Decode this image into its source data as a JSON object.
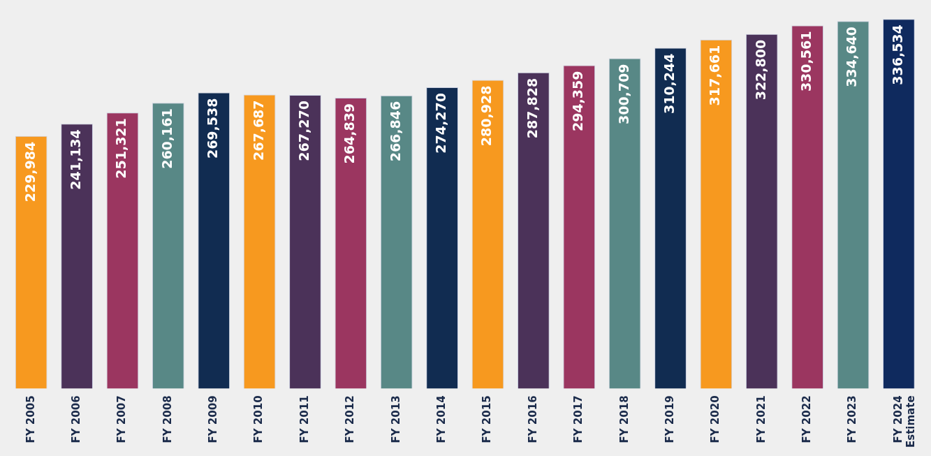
{
  "chart_data": {
    "type": "bar",
    "categories": [
      "FY 2005",
      "FY 2006",
      "FY 2007",
      "FY 2008",
      "FY 2009",
      "FY 2010",
      "FY 2011",
      "FY 2012",
      "FY 2013",
      "FY 2014",
      "FY 2015",
      "FY 2016",
      "FY 2017",
      "FY 2018",
      "FY 2019",
      "FY 2020",
      "FY 2021",
      "FY 2022",
      "FY 2023",
      "FY 2024\nEstimate"
    ],
    "values": [
      229984,
      241134,
      251321,
      260161,
      269538,
      267687,
      267270,
      264839,
      266846,
      274270,
      280928,
      287828,
      294359,
      300709,
      310244,
      317661,
      322800,
      330561,
      334640,
      336534
    ],
    "colors": [
      "#f7991f",
      "#4b3259",
      "#9b3660",
      "#588886",
      "#112c51",
      "#f7991f",
      "#4b3259",
      "#9b3660",
      "#588886",
      "#112c51",
      "#f7991f",
      "#4b3259",
      "#9b3660",
      "#588886",
      "#112c51",
      "#f7991f",
      "#4b3259",
      "#9b3660",
      "#588886",
      "#0f2a5e"
    ],
    "value_labels": [
      "229,984",
      "241,134",
      "251,321",
      "260,161",
      "269,538",
      "267,687",
      "267,270",
      "264,839",
      "266,846",
      "274,270",
      "280,928",
      "287,828",
      "294,359",
      "300,709",
      "310,244",
      "317,661",
      "322,800",
      "330,561",
      "334,640",
      "336,534"
    ],
    "grid": false,
    "legend": false
  }
}
